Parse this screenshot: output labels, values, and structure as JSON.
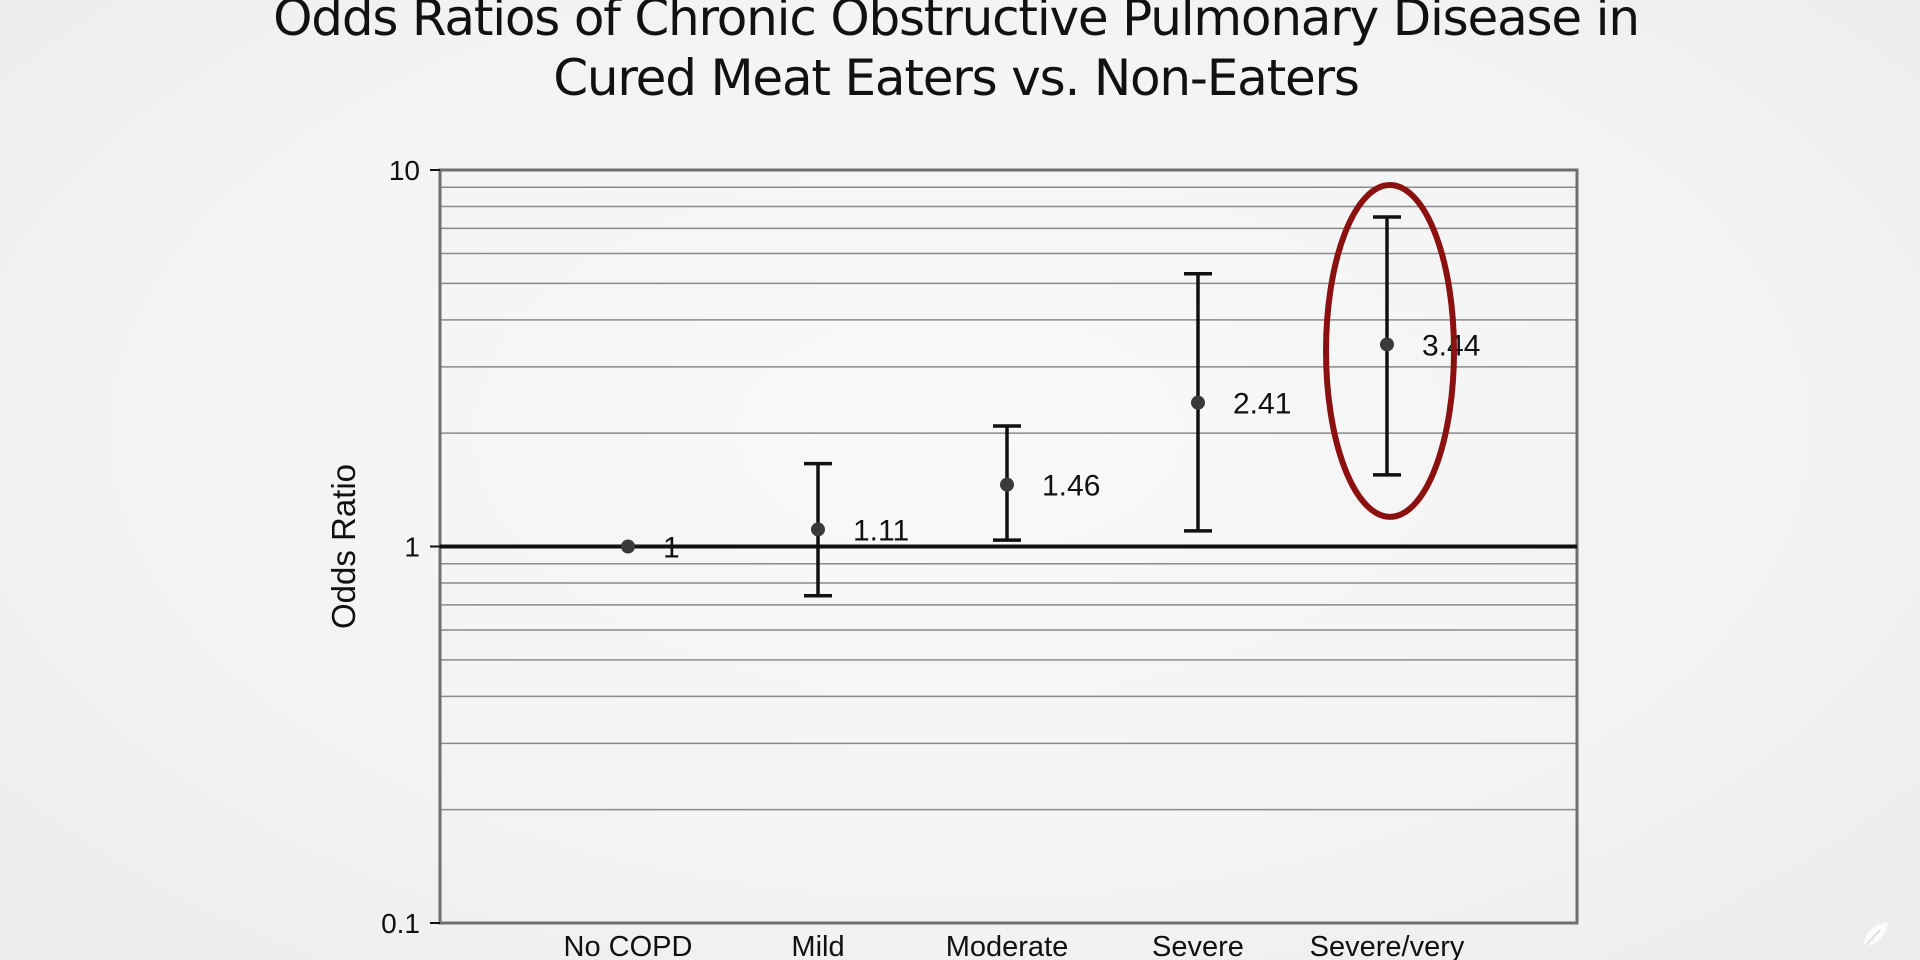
{
  "slide": {
    "title_line1": "Odds Ratios of Chronic Obstructive Pulmonary Disease in",
    "title_line2": "Cured Meat Eaters vs. Non-Eaters"
  },
  "chart_data": {
    "type": "scatter",
    "title": "Odds Ratios of Chronic Obstructive Pulmonary Disease in Cured Meat Eaters vs. Non-Eaters",
    "xlabel": "",
    "ylabel": "Odds Ratio",
    "y_scale": "log",
    "ylim": [
      0.1,
      10
    ],
    "y_ticks": [
      {
        "value": 0.1,
        "label": "0.1"
      },
      {
        "value": 1,
        "label": "1"
      },
      {
        "value": 10,
        "label": "10"
      }
    ],
    "grid": true,
    "reference_line": 1,
    "categories": [
      "No COPD",
      "Mild",
      "Moderate",
      "Severe",
      "Severe/very"
    ],
    "points": [
      {
        "category": "No COPD",
        "value": 1,
        "label": "1",
        "ci_low": 1,
        "ci_high": 1
      },
      {
        "category": "Mild",
        "value": 1.11,
        "label": "1.11",
        "ci_low": 0.74,
        "ci_high": 1.66
      },
      {
        "category": "Moderate",
        "value": 1.46,
        "label": "1.46",
        "ci_low": 1.04,
        "ci_high": 2.09
      },
      {
        "category": "Severe",
        "value": 2.41,
        "label": "2.41",
        "ci_low": 1.1,
        "ci_high": 5.3
      },
      {
        "category": "Severe/very",
        "value": 3.44,
        "label": "3.44",
        "ci_low": 1.55,
        "ci_high": 7.5
      }
    ],
    "highlight": {
      "category": "Severe/very",
      "color": "#8b1010"
    },
    "colors": {
      "point": "#3a3a3a",
      "bar": "#111111",
      "grid": "#8a8a8a",
      "frame": "#6e6e6e"
    }
  }
}
